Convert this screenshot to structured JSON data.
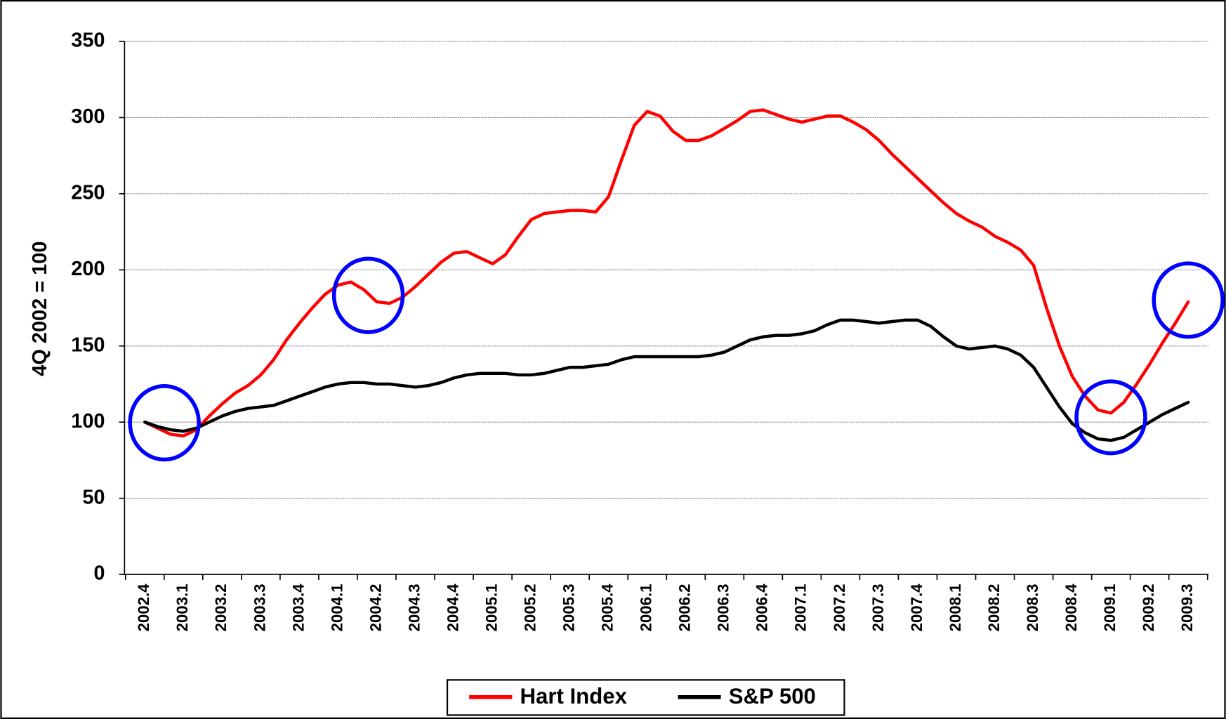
{
  "chart_data": {
    "type": "line",
    "y_label": "4Q 2002 = 100",
    "categories": [
      "2002.4",
      null,
      null,
      "2003.1",
      null,
      null,
      "2003.2",
      null,
      null,
      "2003.3",
      null,
      null,
      "2003.4",
      null,
      null,
      "2004.1",
      null,
      null,
      "2004.2",
      null,
      null,
      "2004.3",
      null,
      null,
      "2004.4",
      null,
      null,
      "2005.1",
      null,
      null,
      "2005.2",
      null,
      null,
      "2005.3",
      null,
      null,
      "2005.4",
      null,
      null,
      "2006.1",
      null,
      null,
      "2006.2",
      null,
      null,
      "2006.3",
      null,
      null,
      "2006.4",
      null,
      null,
      "2007.1",
      null,
      null,
      "2007.2",
      null,
      null,
      "2007.3",
      null,
      null,
      "2007.4",
      null,
      null,
      "2008.1",
      null,
      null,
      "2008.2",
      null,
      null,
      "2008.3",
      null,
      null,
      "2008.4",
      null,
      null,
      "2009.1",
      null,
      null,
      "2009.2",
      null,
      null,
      "2009.3"
    ],
    "series": [
      {
        "name": "Hart Index",
        "color": "#ff0000",
        "values": [
          100,
          96,
          92,
          91,
          95,
          104,
          112,
          119,
          124,
          131,
          141,
          154,
          165,
          175,
          184,
          190,
          192,
          187,
          179,
          178,
          182,
          189,
          197,
          205,
          211,
          212,
          208,
          204,
          210,
          222,
          233,
          237,
          238,
          239,
          239,
          238,
          248,
          272,
          295,
          304,
          301,
          291,
          285,
          285,
          288,
          293,
          298,
          304,
          305,
          302,
          299,
          297,
          299,
          301,
          301,
          297,
          292,
          285,
          276,
          268,
          260,
          252,
          244,
          237,
          232,
          228,
          222,
          218,
          213,
          203,
          175,
          150,
          130,
          117,
          108,
          106,
          113,
          125,
          138,
          152,
          165,
          179
        ]
      },
      {
        "name": "S&P 500",
        "color": "#000000",
        "values": [
          100,
          97,
          95,
          94,
          96,
          100,
          104,
          107,
          109,
          110,
          111,
          114,
          117,
          120,
          123,
          125,
          126,
          126,
          125,
          125,
          124,
          123,
          124,
          126,
          129,
          131,
          132,
          132,
          132,
          131,
          131,
          132,
          134,
          136,
          136,
          137,
          138,
          141,
          143,
          143,
          143,
          143,
          143,
          143,
          144,
          146,
          150,
          154,
          156,
          157,
          157,
          158,
          160,
          164,
          167,
          167,
          166,
          165,
          166,
          167,
          167,
          163,
          156,
          150,
          148,
          149,
          150,
          148,
          144,
          136,
          123,
          110,
          99,
          93,
          89,
          88,
          90,
          95,
          100,
          105,
          109,
          113
        ]
      }
    ],
    "ylim": [
      0,
      350
    ],
    "yticks": [
      0,
      50,
      100,
      150,
      200,
      250,
      300,
      350
    ],
    "grid": true,
    "legend": "bottom"
  }
}
